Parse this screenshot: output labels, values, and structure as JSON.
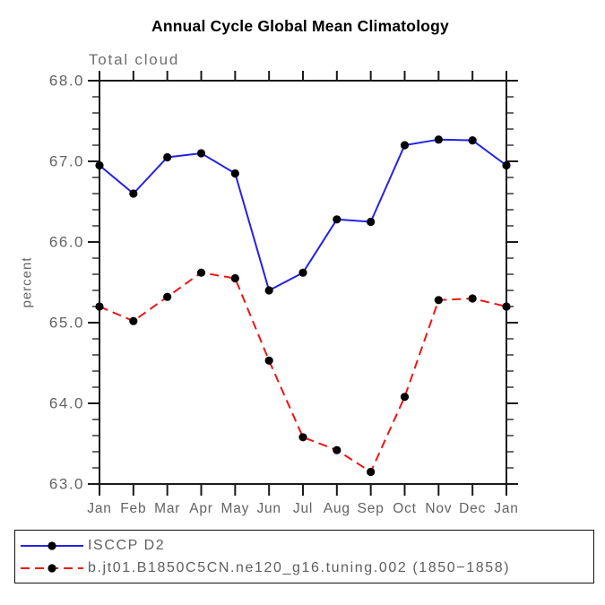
{
  "chart_data": {
    "type": "line",
    "title": "Annual Cycle Global Mean Climatology",
    "subtitle": "Total cloud",
    "ylabel": "percent",
    "xlabel": "",
    "categories": [
      "Jan",
      "Feb",
      "Mar",
      "Apr",
      "May",
      "Jun",
      "Jul",
      "Aug",
      "Sep",
      "Oct",
      "Nov",
      "Dec",
      "Jan"
    ],
    "ylim": [
      63.0,
      68.0
    ],
    "ytick_labels": [
      "63.0",
      "64.0",
      "65.0",
      "66.0",
      "67.0",
      "68.0"
    ],
    "ytick_interval": 1.0,
    "yminor_interval": 0.2,
    "grid": false,
    "legend_position": "bottom-left-box",
    "axis_color": "#1a1a1a",
    "tick_label_color": "#636363",
    "marker_color": "#000000",
    "series": [
      {
        "name": "ISCCP D2",
        "color": "#2222e6",
        "style": "solid",
        "marker": "circle",
        "values": [
          66.95,
          66.6,
          67.05,
          67.1,
          66.85,
          65.4,
          65.62,
          66.28,
          66.25,
          67.2,
          67.27,
          67.26,
          66.95
        ]
      },
      {
        "name": "b.jt01.B1850C5CN.ne120_g16.tuning.002 (1850−1858)",
        "color": "#ee1515",
        "style": "dashed",
        "marker": "circle",
        "values": [
          65.2,
          65.02,
          65.32,
          65.62,
          65.55,
          64.53,
          63.58,
          63.42,
          63.15,
          64.08,
          65.28,
          65.3,
          65.2
        ]
      }
    ]
  }
}
